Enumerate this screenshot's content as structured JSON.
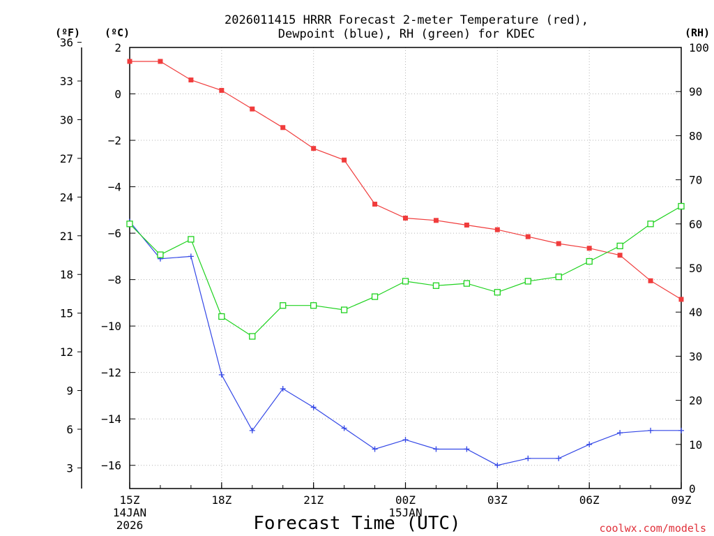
{
  "chart_data": {
    "type": "line",
    "title_line1": "2026011415 HRRR Forecast 2-meter Temperature (red),",
    "title_line2": "Dewpoint (blue), RH (green) for KDEC",
    "xlabel": "Forecast Time (UTC)",
    "credit": "coolwx.com/models",
    "unit_f": "(ºF)",
    "unit_c": "(ºC)",
    "unit_rh": "(RH)",
    "x_hours": [
      0,
      1,
      2,
      3,
      4,
      5,
      6,
      7,
      8,
      9,
      10,
      11,
      12,
      13,
      14,
      15,
      16,
      17,
      18
    ],
    "x_ticks": [
      {
        "hour": 0,
        "label": "15Z",
        "sub1": "14JAN",
        "sub2": "2026"
      },
      {
        "hour": 3,
        "label": "18Z",
        "sub1": "",
        "sub2": ""
      },
      {
        "hour": 6,
        "label": "21Z",
        "sub1": "",
        "sub2": ""
      },
      {
        "hour": 9,
        "label": "00Z",
        "sub1": "15JAN",
        "sub2": ""
      },
      {
        "hour": 12,
        "label": "03Z",
        "sub1": "",
        "sub2": ""
      },
      {
        "hour": 15,
        "label": "06Z",
        "sub1": "",
        "sub2": ""
      },
      {
        "hour": 18,
        "label": "09Z",
        "sub1": "",
        "sub2": ""
      }
    ],
    "ylim_c": [
      -17,
      2
    ],
    "ylim_rh": [
      0,
      100
    ],
    "yticks_c": [
      2,
      0,
      -2,
      -4,
      -6,
      -8,
      -10,
      -12,
      -14,
      -16
    ],
    "yticks_f": [
      36,
      33,
      30,
      27,
      24,
      21,
      18,
      15,
      12,
      9,
      6,
      3
    ],
    "yticks_rh": [
      100,
      90,
      80,
      70,
      60,
      50,
      40,
      30,
      20,
      10,
      0
    ],
    "colors": {
      "temperature": "#f03c3c",
      "dewpoint": "#3246e6",
      "rh": "#1ed21e",
      "grid": "#b4b4b4"
    },
    "series": [
      {
        "name": "Temperature (°C)",
        "axis": "c",
        "marker": "filled-square",
        "values": [
          1.4,
          1.4,
          0.6,
          0.15,
          -0.65,
          -1.45,
          -2.35,
          -2.85,
          -4.75,
          -5.35,
          -5.45,
          -5.65,
          -5.85,
          -6.15,
          -6.45,
          -6.65,
          -6.95,
          -8.05,
          -8.85
        ]
      },
      {
        "name": "Dewpoint (°C)",
        "axis": "c",
        "marker": "plus",
        "values": [
          -5.5,
          -7.1,
          -7.0,
          -12.1,
          -14.5,
          -12.7,
          -13.5,
          -14.4,
          -15.3,
          -14.9,
          -15.3,
          -15.3,
          -16.0,
          -15.7,
          -15.7,
          -15.1,
          -14.6,
          -14.5,
          -14.5
        ]
      },
      {
        "name": "RH (%)",
        "axis": "rh",
        "marker": "open-square",
        "values": [
          60,
          53,
          56.5,
          39,
          34.5,
          41.5,
          41.5,
          40.5,
          43.5,
          47,
          46,
          46.5,
          44.5,
          47,
          48,
          51.5,
          55,
          60,
          64
        ]
      }
    ]
  }
}
